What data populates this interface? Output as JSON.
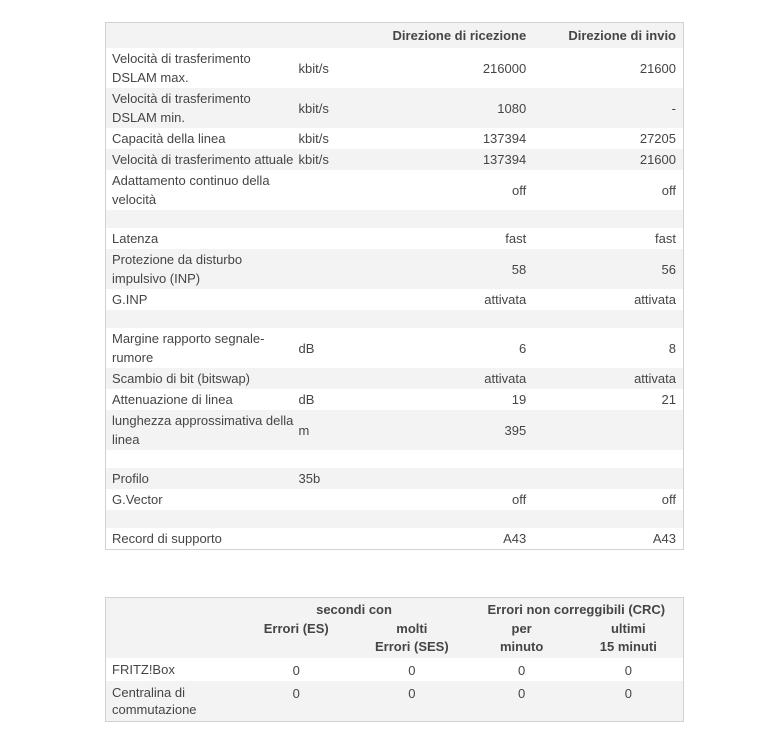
{
  "colors": {
    "row_alt_background": "#f3f3f3",
    "table_border": "#d2d2d2",
    "text": "#454545"
  },
  "dsl_table": {
    "header": {
      "rx": "Direzione di ricezione",
      "tx": "Direzione di invio"
    },
    "rows": [
      {
        "label": "Velocità di trasferimento DSLAM max.",
        "unit": "kbit/s",
        "rx": "216000",
        "tx": "21600"
      },
      {
        "label": "Velocità di trasferimento DSLAM min.",
        "unit": "kbit/s",
        "rx": "1080",
        "tx": "-"
      },
      {
        "label": "Capacità della linea",
        "unit": "kbit/s",
        "rx": "137394",
        "tx": "27205"
      },
      {
        "label": "Velocità di trasferimento attuale",
        "unit": "kbit/s",
        "rx": "137394",
        "tx": "21600"
      },
      {
        "label": "Adattamento continuo della velocità",
        "unit": "",
        "rx": "off",
        "tx": "off"
      },
      {
        "spacer": true
      },
      {
        "label": "Latenza",
        "unit": "",
        "rx": "fast",
        "tx": "fast"
      },
      {
        "label": "Protezione da disturbo impulsivo (INP)",
        "unit": "",
        "rx": "58",
        "tx": "56"
      },
      {
        "label": "G.INP",
        "unit": "",
        "rx": "attivata",
        "tx": "attivata"
      },
      {
        "spacer": true
      },
      {
        "label": "Margine rapporto segnale-rumore",
        "unit": "dB",
        "rx": "6",
        "tx": "8"
      },
      {
        "label": "Scambio di bit (bitswap)",
        "unit": "",
        "rx": "attivata",
        "tx": "attivata"
      },
      {
        "label": "Attenuazione di linea",
        "unit": "dB",
        "rx": "19",
        "tx": "21"
      },
      {
        "label": "lunghezza approssimativa della linea",
        "unit": "m",
        "rx": "395",
        "tx": ""
      },
      {
        "spacer": true
      },
      {
        "label": "Profilo",
        "unit": "35b",
        "rx": "",
        "tx": ""
      },
      {
        "label": "G.Vector",
        "unit": "",
        "rx": "off",
        "tx": "off"
      },
      {
        "spacer": true
      },
      {
        "label": "Record di supporto",
        "unit": "",
        "rx": "A43",
        "tx": "A43"
      }
    ]
  },
  "error_table": {
    "groups": {
      "seconds": "secondi con",
      "crc": "Errori non correggibili (CRC)"
    },
    "columns": [
      "Errori (ES)",
      "molti\nErrori (SES)",
      "per\nminuto",
      "ultimi\n15 minuti"
    ],
    "rows": [
      {
        "label": "FRITZ!Box",
        "values": [
          "0",
          "0",
          "0",
          "0"
        ]
      },
      {
        "label": "Centralina di commutazione",
        "values": [
          "0",
          "0",
          "0",
          "0"
        ]
      }
    ]
  }
}
